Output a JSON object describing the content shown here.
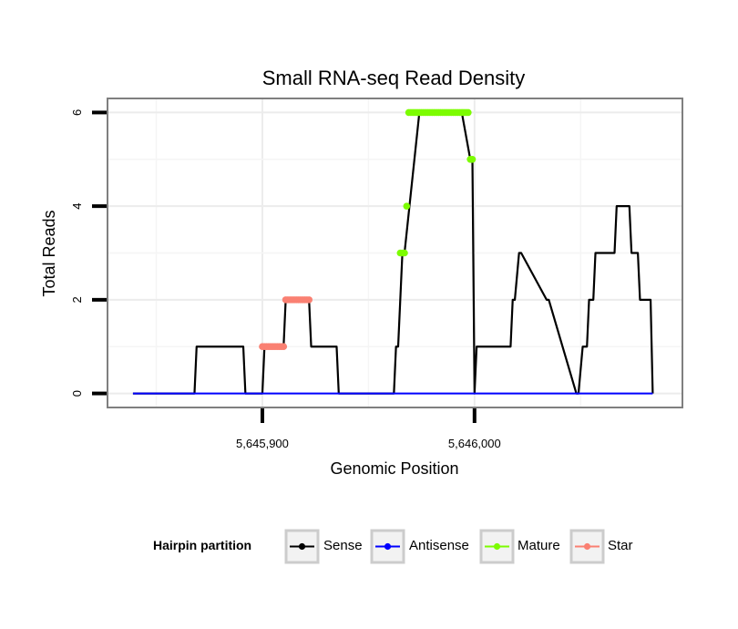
{
  "chart_data": {
    "type": "line",
    "title": "Small RNA-seq Read Density",
    "xlabel": "Genomic Position",
    "ylabel": "Total Reads",
    "xlim": [
      5645827,
      5646098
    ],
    "ylim": [
      -0.3,
      6.3
    ],
    "x_ticks": [
      5645900,
      5646000
    ],
    "x_tick_labels": [
      "5,645,900",
      "5,646,000"
    ],
    "y_ticks": [
      0,
      2,
      4,
      6
    ],
    "y_tick_labels": [
      "0",
      "2",
      "4",
      "6"
    ],
    "grid": true,
    "legend": {
      "position": "bottom",
      "title": "Hairpin partition",
      "entries": [
        {
          "name": "Sense",
          "color": "#000000"
        },
        {
          "name": "Antisense",
          "color": "#0000ff"
        },
        {
          "name": "Mature",
          "color": "#7cfc00"
        },
        {
          "name": "Star",
          "color": "#fa8072"
        }
      ]
    },
    "series": [
      {
        "name": "Sense",
        "color": "#000000",
        "x": [
          5645839,
          5645868,
          5645869,
          5645891,
          5645892,
          5645900,
          5645901,
          5645910,
          5645911,
          5645922,
          5645923,
          5645935,
          5645936,
          5645962,
          5645963,
          5645964,
          5645966,
          5645967,
          5645974,
          5645994,
          5645998,
          5645999,
          5646000,
          5646001,
          5646017,
          5646018,
          5646019,
          5646021,
          5646022,
          5646034,
          5646035,
          5646048,
          5646049,
          5646051,
          5646053,
          5646054,
          5646056,
          5646057,
          5646066,
          5646067,
          5646069,
          5646070,
          5646073,
          5646074,
          5646077,
          5646078,
          5646083,
          5646084
        ],
        "y": [
          0,
          0,
          1,
          1,
          0,
          0,
          1,
          1,
          2,
          2,
          1,
          1,
          0,
          0,
          1,
          1,
          3,
          3,
          6,
          6,
          5,
          5,
          0,
          1,
          1,
          2,
          2,
          3,
          3,
          2,
          2,
          0,
          0,
          1,
          1,
          2,
          2,
          3,
          3,
          4,
          4,
          4,
          4,
          3,
          3,
          2,
          2,
          0
        ]
      },
      {
        "name": "Antisense",
        "color": "#0000ff",
        "x": [
          5645839,
          5646084
        ],
        "y": [
          0,
          0
        ]
      },
      {
        "name": "Mature",
        "color": "#7cfc00",
        "x": [
          5645965,
          5645966,
          5645967,
          5645968,
          5645969,
          5645970,
          5645971,
          5645972,
          5645973,
          5645974,
          5645975,
          5645976,
          5645977,
          5645978,
          5645979,
          5645980,
          5645981,
          5645982,
          5645983,
          5645984,
          5645985,
          5645986,
          5645987,
          5645988,
          5645989,
          5645990,
          5645991,
          5645992,
          5645993,
          5645994,
          5645995,
          5645996,
          5645997,
          5645998,
          5645999
        ],
        "y": [
          3,
          3,
          3,
          4,
          6,
          6,
          6,
          6,
          6,
          6,
          6,
          6,
          6,
          6,
          6,
          6,
          6,
          6,
          6,
          6,
          6,
          6,
          6,
          6,
          6,
          6,
          6,
          6,
          6,
          6,
          6,
          6,
          6,
          5,
          5
        ]
      },
      {
        "name": "Star",
        "color": "#fa8072",
        "x": [
          5645900,
          5645901,
          5645902,
          5645903,
          5645904,
          5645905,
          5645906,
          5645907,
          5645908,
          5645909,
          5645910,
          5645911,
          5645912,
          5645913,
          5645914,
          5645915,
          5645916,
          5645917,
          5645918,
          5645919,
          5645920,
          5645921,
          5645922
        ],
        "y": [
          1,
          1,
          1,
          1,
          1,
          1,
          1,
          1,
          1,
          1,
          1,
          2,
          2,
          2,
          2,
          2,
          2,
          2,
          2,
          2,
          2,
          2,
          2
        ]
      }
    ]
  }
}
